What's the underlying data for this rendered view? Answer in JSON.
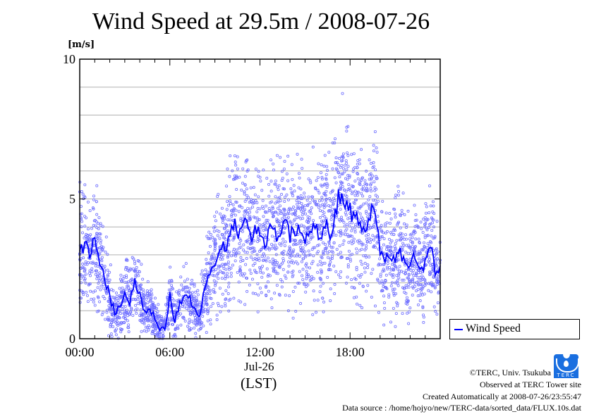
{
  "chart_data": {
    "type": "line",
    "title": "Wind Speed at 29.5m / 2008-07-26",
    "ylabel": "[m/s]",
    "xlabel": "(LST)",
    "date_label": "Jul-26",
    "ylim": [
      0,
      10
    ],
    "xlim_hours": [
      0,
      24
    ],
    "y_ticks": [
      {
        "v": 0,
        "label": "0"
      },
      {
        "v": 5,
        "label": "5"
      },
      {
        "v": 10,
        "label": "10"
      }
    ],
    "x_ticks": [
      {
        "h": 0,
        "label": "00:00"
      },
      {
        "h": 6,
        "label": "06:00"
      },
      {
        "h": 12,
        "label": "12:00"
      },
      {
        "h": 18,
        "label": "18:00"
      }
    ],
    "grid": true,
    "legend": {
      "label": "Wind Speed",
      "placement": "right-bottom"
    },
    "series": [
      {
        "name": "Wind Speed",
        "color": "#0000ff",
        "scatter_color": "#7070ff",
        "step_hours": 0.3333,
        "values": [
          3.2,
          3.4,
          3.0,
          3.5,
          2.5,
          2.2,
          1.5,
          0.9,
          1.2,
          1.6,
          1.3,
          2.1,
          1.5,
          0.9,
          1.1,
          0.7,
          0.4,
          0.3,
          1.6,
          0.6,
          1.3,
          1.5,
          1.4,
          1.0,
          0.8,
          1.9,
          2.2,
          2.8,
          3.0,
          3.3,
          3.7,
          4.0,
          3.8,
          4.2,
          3.6,
          4.0,
          3.8,
          3.5,
          3.9,
          3.7,
          3.9,
          4.1,
          3.6,
          4.0,
          3.9,
          3.5,
          3.8,
          4.1,
          3.6,
          4.2,
          3.8,
          4.5,
          5.2,
          5.0,
          4.6,
          4.3,
          4.2,
          4.0,
          4.4,
          4.6,
          3.2,
          2.9,
          3.0,
          2.8,
          3.1,
          2.6,
          2.5,
          3.0,
          2.4,
          2.8,
          3.3,
          2.5
        ]
      }
    ]
  },
  "footer": {
    "copyright": "©TERC, Univ. Tsukuba",
    "observed": "Observed at TERC Tower site",
    "created": "Created Automatically at 2008-07-26/23:55:47",
    "source": "Data source : /home/hojyo/new/TERC-data/sorted_data/FLUX.10s.dat",
    "logo_text": "TERC"
  }
}
